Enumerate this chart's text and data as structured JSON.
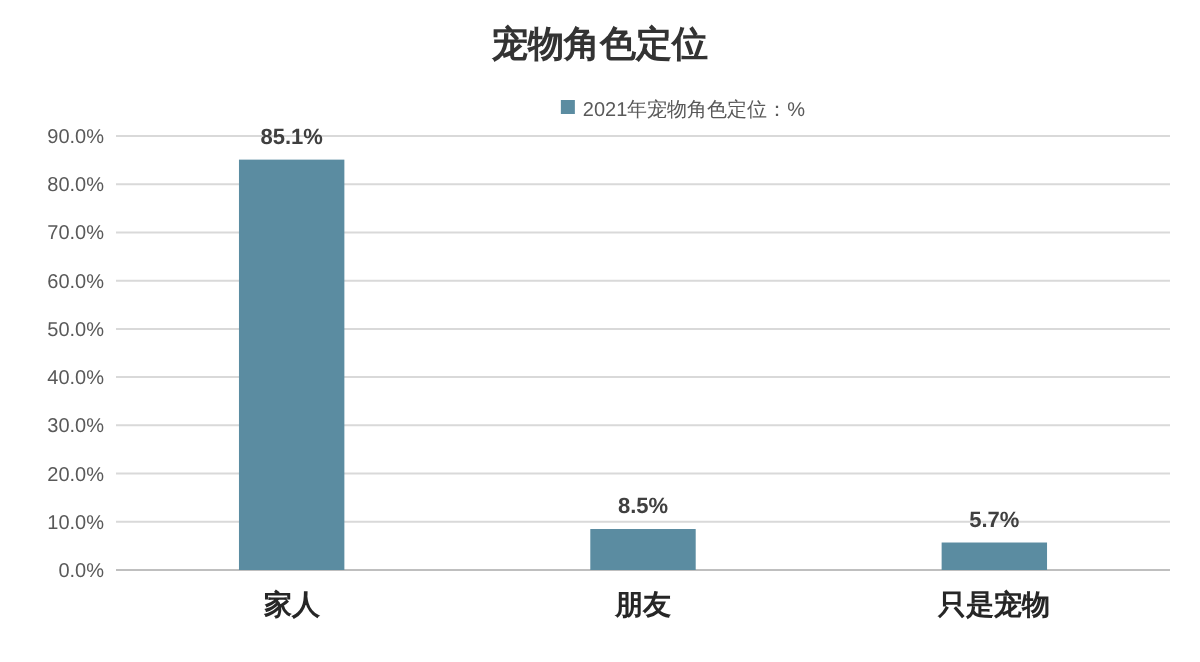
{
  "chart_data": {
    "type": "bar",
    "title": "宠物角色定位",
    "categories": [
      "家人",
      "朋友",
      "只是宠物"
    ],
    "series": [
      {
        "name": "2021年宠物角色定位：%",
        "color": "#5b8ca1",
        "values": [
          85.1,
          8.5,
          5.7
        ],
        "value_labels": [
          "85.1%",
          "8.5%",
          "5.7%"
        ]
      }
    ],
    "ylim": [
      0,
      90
    ],
    "yticks": [
      {
        "value": 0,
        "label": "0.0%"
      },
      {
        "value": 10,
        "label": "10.0%"
      },
      {
        "value": 20,
        "label": "20.0%"
      },
      {
        "value": 30,
        "label": "30.0%"
      },
      {
        "value": 40,
        "label": "40.0%"
      },
      {
        "value": 50,
        "label": "50.0%"
      },
      {
        "value": 60,
        "label": "60.0%"
      },
      {
        "value": 70,
        "label": "70.0%"
      },
      {
        "value": 80,
        "label": "80.0%"
      },
      {
        "value": 90,
        "label": "90.0%"
      }
    ],
    "grid": "y",
    "legend": "top"
  }
}
